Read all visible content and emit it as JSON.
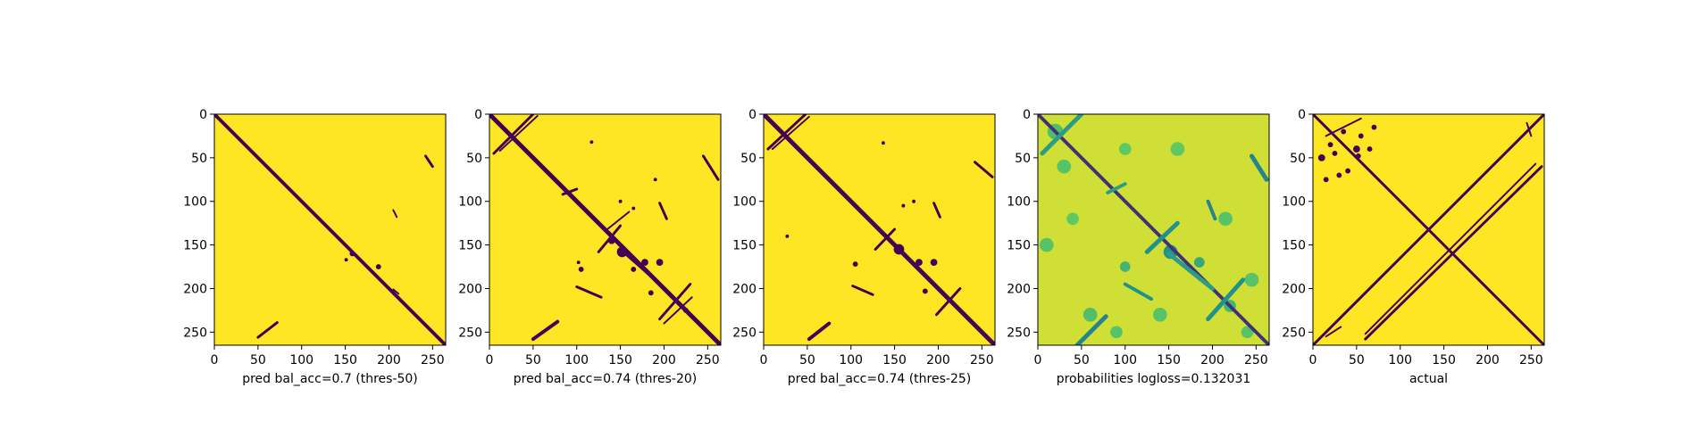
{
  "chart_data": [
    {
      "type": "heatmap",
      "title": "",
      "xlabel": "pred bal_acc=0.7 (thres-50)",
      "ylabel": "",
      "xlim": [
        0,
        265
      ],
      "ylim": [
        265,
        0
      ],
      "xticks": [
        0,
        50,
        100,
        150,
        200,
        250
      ],
      "yticks": [
        0,
        50,
        100,
        150,
        200,
        250
      ],
      "colormap": "viridis",
      "background_value": 1,
      "lines": [
        {
          "from": [
            0,
            0
          ],
          "to": [
            265,
            265
          ],
          "width": 4
        },
        {
          "from": [
            242,
            48
          ],
          "to": [
            250,
            60
          ],
          "width": 3
        },
        {
          "from": [
            50,
            256
          ],
          "to": [
            72,
            239
          ],
          "width": 3
        },
        {
          "from": [
            205,
            201
          ],
          "to": [
            211,
            206
          ],
          "width": 2
        },
        {
          "from": [
            205,
            110
          ],
          "to": [
            209,
            118
          ],
          "width": 2
        }
      ],
      "blobs": [
        {
          "at": [
            188,
            175
          ],
          "r": 3
        },
        {
          "at": [
            151,
            167
          ],
          "r": 2
        },
        {
          "at": [
            158,
            160
          ],
          "r": 3
        }
      ]
    },
    {
      "type": "heatmap",
      "title": "",
      "xlabel": "pred bal_acc=0.74 (thres-20)",
      "ylabel": "",
      "xlim": [
        0,
        265
      ],
      "ylim": [
        265,
        0
      ],
      "xticks": [
        0,
        50,
        100,
        150,
        200,
        250
      ],
      "yticks": [
        0,
        50,
        100,
        150,
        200,
        250
      ],
      "colormap": "viridis",
      "background_value": 1,
      "lines": [
        {
          "from": [
            0,
            0
          ],
          "to": [
            265,
            265
          ],
          "width": 5
        },
        {
          "from": [
            5,
            45
          ],
          "to": [
            50,
            0
          ],
          "width": 3
        },
        {
          "from": [
            12,
            42
          ],
          "to": [
            55,
            2
          ],
          "width": 2
        },
        {
          "from": [
            245,
            48
          ],
          "to": [
            262,
            75
          ],
          "width": 3
        },
        {
          "from": [
            50,
            258
          ],
          "to": [
            78,
            238
          ],
          "width": 4
        },
        {
          "from": [
            100,
            198
          ],
          "to": [
            128,
            210
          ],
          "width": 3
        },
        {
          "from": [
            195,
            235
          ],
          "to": [
            230,
            195
          ],
          "width": 3
        },
        {
          "from": [
            200,
            240
          ],
          "to": [
            232,
            210
          ],
          "width": 2
        },
        {
          "from": [
            125,
            158
          ],
          "to": [
            150,
            128
          ],
          "width": 3
        },
        {
          "from": [
            150,
            155
          ],
          "to": [
            195,
            195
          ],
          "width": 3
        },
        {
          "from": [
            195,
            102
          ],
          "to": [
            203,
            120
          ],
          "width": 3
        },
        {
          "from": [
            84,
            92
          ],
          "to": [
            100,
            86
          ],
          "width": 3
        },
        {
          "from": [
            135,
            132
          ],
          "to": [
            160,
            112
          ],
          "width": 2
        }
      ],
      "blobs": [
        {
          "at": [
            152,
            158
          ],
          "r": 6
        },
        {
          "at": [
            140,
            145
          ],
          "r": 4
        },
        {
          "at": [
            178,
            170
          ],
          "r": 4
        },
        {
          "at": [
            195,
            170
          ],
          "r": 4
        },
        {
          "at": [
            105,
            178
          ],
          "r": 3
        },
        {
          "at": [
            185,
            205
          ],
          "r": 3
        },
        {
          "at": [
            165,
            178
          ],
          "r": 3
        },
        {
          "at": [
            150,
            100
          ],
          "r": 2
        },
        {
          "at": [
            165,
            108
          ],
          "r": 2
        },
        {
          "at": [
            225,
            225
          ],
          "r": 3
        },
        {
          "at": [
            102,
            170
          ],
          "r": 2
        },
        {
          "at": [
            190,
            75
          ],
          "r": 2
        },
        {
          "at": [
            117,
            32
          ],
          "r": 2
        }
      ]
    },
    {
      "type": "heatmap",
      "title": "",
      "xlabel": "pred bal_acc=0.74 (thres-25)",
      "ylabel": "",
      "xlim": [
        0,
        265
      ],
      "ylim": [
        265,
        0
      ],
      "xticks": [
        0,
        50,
        100,
        150,
        200,
        250
      ],
      "yticks": [
        0,
        50,
        100,
        150,
        200,
        250
      ],
      "colormap": "viridis",
      "background_value": 1,
      "lines": [
        {
          "from": [
            0,
            0
          ],
          "to": [
            265,
            265
          ],
          "width": 5
        },
        {
          "from": [
            5,
            40
          ],
          "to": [
            48,
            0
          ],
          "width": 3
        },
        {
          "from": [
            10,
            40
          ],
          "to": [
            52,
            3
          ],
          "width": 2
        },
        {
          "from": [
            242,
            55
          ],
          "to": [
            262,
            72
          ],
          "width": 3
        },
        {
          "from": [
            52,
            258
          ],
          "to": [
            75,
            240
          ],
          "width": 4
        },
        {
          "from": [
            102,
            197
          ],
          "to": [
            125,
            207
          ],
          "width": 3
        },
        {
          "from": [
            198,
            230
          ],
          "to": [
            225,
            200
          ],
          "width": 3
        },
        {
          "from": [
            128,
            155
          ],
          "to": [
            150,
            132
          ],
          "width": 3
        },
        {
          "from": [
            195,
            102
          ],
          "to": [
            202,
            118
          ],
          "width": 3
        }
      ],
      "blobs": [
        {
          "at": [
            155,
            155
          ],
          "r": 6
        },
        {
          "at": [
            178,
            170
          ],
          "r": 4
        },
        {
          "at": [
            195,
            170
          ],
          "r": 4
        },
        {
          "at": [
            105,
            172
          ],
          "r": 3
        },
        {
          "at": [
            185,
            203
          ],
          "r": 3
        },
        {
          "at": [
            160,
            105
          ],
          "r": 2
        },
        {
          "at": [
            172,
            100
          ],
          "r": 2
        },
        {
          "at": [
            137,
            33
          ],
          "r": 2
        },
        {
          "at": [
            27,
            140
          ],
          "r": 2
        }
      ]
    },
    {
      "type": "heatmap",
      "title": "",
      "xlabel": "probabilities logloss=0.132031",
      "ylabel": "",
      "xlim": [
        0,
        265
      ],
      "ylim": [
        265,
        0
      ],
      "xticks": [
        0,
        50,
        100,
        150,
        200,
        250
      ],
      "yticks": [
        0,
        50,
        100,
        150,
        200,
        250
      ],
      "colormap": "viridis",
      "background_value": 0.93,
      "lines": [
        {
          "from": [
            0,
            0
          ],
          "to": [
            265,
            265
          ],
          "width": 4,
          "value": 0.15
        },
        {
          "from": [
            5,
            45
          ],
          "to": [
            50,
            0
          ],
          "width": 5,
          "value": 0.55
        },
        {
          "from": [
            245,
            48
          ],
          "to": [
            262,
            75
          ],
          "width": 5,
          "value": 0.45
        },
        {
          "from": [
            45,
            265
          ],
          "to": [
            78,
            232
          ],
          "width": 5,
          "value": 0.45
        },
        {
          "from": [
            100,
            195
          ],
          "to": [
            130,
            212
          ],
          "width": 4,
          "value": 0.5
        },
        {
          "from": [
            195,
            235
          ],
          "to": [
            235,
            190
          ],
          "width": 5,
          "value": 0.5
        },
        {
          "from": [
            125,
            158
          ],
          "to": [
            160,
            125
          ],
          "width": 5,
          "value": 0.5
        },
        {
          "from": [
            195,
            100
          ],
          "to": [
            203,
            120
          ],
          "width": 4,
          "value": 0.45
        },
        {
          "from": [
            80,
            90
          ],
          "to": [
            100,
            80
          ],
          "width": 4,
          "value": 0.55
        },
        {
          "from": [
            150,
            160
          ],
          "to": [
            200,
            200
          ],
          "width": 5,
          "value": 0.55
        }
      ],
      "blobs": [
        {
          "at": [
            152,
            158
          ],
          "r": 8,
          "value": 0.5
        },
        {
          "at": [
            185,
            170
          ],
          "r": 6,
          "value": 0.6
        },
        {
          "at": [
            100,
            175
          ],
          "r": 6,
          "value": 0.65
        },
        {
          "at": [
            20,
            20
          ],
          "r": 9,
          "value": 0.7
        },
        {
          "at": [
            220,
            220
          ],
          "r": 7,
          "value": 0.65
        },
        {
          "at": [
            60,
            230
          ],
          "r": 8,
          "value": 0.7
        },
        {
          "at": [
            10,
            150
          ],
          "r": 8,
          "value": 0.72
        },
        {
          "at": [
            30,
            60
          ],
          "r": 8,
          "value": 0.72
        },
        {
          "at": [
            215,
            120
          ],
          "r": 8,
          "value": 0.72
        },
        {
          "at": [
            245,
            190
          ],
          "r": 8,
          "value": 0.72
        },
        {
          "at": [
            140,
            230
          ],
          "r": 8,
          "value": 0.72
        },
        {
          "at": [
            90,
            250
          ],
          "r": 7,
          "value": 0.72
        },
        {
          "at": [
            160,
            40
          ],
          "r": 8,
          "value": 0.75
        },
        {
          "at": [
            100,
            40
          ],
          "r": 7,
          "value": 0.75
        },
        {
          "at": [
            40,
            120
          ],
          "r": 7,
          "value": 0.75
        },
        {
          "at": [
            240,
            250
          ],
          "r": 7,
          "value": 0.72
        }
      ]
    },
    {
      "type": "heatmap",
      "title": "",
      "xlabel": "actual",
      "ylabel": "",
      "xlim": [
        0,
        265
      ],
      "ylim": [
        265,
        0
      ],
      "xticks": [
        0,
        50,
        100,
        150,
        200,
        250
      ],
      "yticks": [
        0,
        50,
        100,
        150,
        200,
        250
      ],
      "colormap": "viridis",
      "background_value": 1,
      "lines": [
        {
          "from": [
            0,
            0
          ],
          "to": [
            265,
            265
          ],
          "width": 3
        },
        {
          "from": [
            0,
            265
          ],
          "to": [
            265,
            0
          ],
          "width": 3
        },
        {
          "from": [
            60,
            258
          ],
          "to": [
            262,
            60
          ],
          "width": 3
        },
        {
          "from": [
            60,
            252
          ],
          "to": [
            255,
            57
          ],
          "width": 2
        },
        {
          "from": [
            15,
            255
          ],
          "to": [
            32,
            244
          ],
          "width": 2
        },
        {
          "from": [
            15,
            25
          ],
          "to": [
            55,
            5
          ],
          "width": 2
        },
        {
          "from": [
            245,
            10
          ],
          "to": [
            250,
            25
          ],
          "width": 2
        }
      ],
      "blobs": [
        {
          "at": [
            10,
            50
          ],
          "r": 4
        },
        {
          "at": [
            20,
            35
          ],
          "r": 3
        },
        {
          "at": [
            25,
            45
          ],
          "r": 3
        },
        {
          "at": [
            35,
            20
          ],
          "r": 3
        },
        {
          "at": [
            50,
            40
          ],
          "r": 4
        },
        {
          "at": [
            55,
            25
          ],
          "r": 3
        },
        {
          "at": [
            65,
            40
          ],
          "r": 3
        },
        {
          "at": [
            70,
            15
          ],
          "r": 3
        },
        {
          "at": [
            40,
            65
          ],
          "r": 3
        },
        {
          "at": [
            15,
            75
          ],
          "r": 3
        },
        {
          "at": [
            30,
            70
          ],
          "r": 3
        },
        {
          "at": [
            52,
            48
          ],
          "r": 3
        }
      ]
    }
  ]
}
